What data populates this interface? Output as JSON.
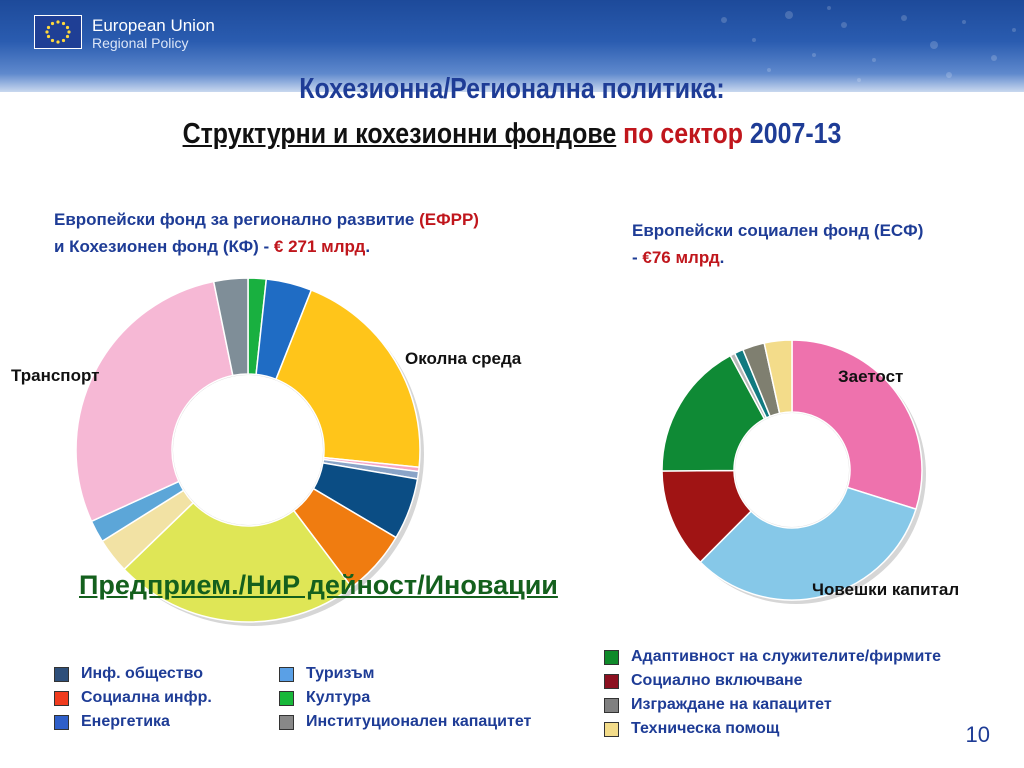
{
  "header": {
    "org_title": "European Union",
    "org_subtitle": "Regional Policy",
    "title_line1": "Кохезионна/Регионална политика:",
    "title_line2_a": "Структурни и кохезионни фондове",
    "title_line2_b": " по сектор ",
    "title_line2_c": "2007-13"
  },
  "left_heading": {
    "line1_a": "Европейски фонд за регионално развитие ",
    "line1_b": "(ЕФРР)",
    "line2_a": "и Кохезионен фонд (КФ) - ",
    "line2_b": "€ 271 млрд",
    "line2_c": "."
  },
  "right_heading": {
    "line1": "Европейски социален фонд (ЕСФ)",
    "line2_a": "- ",
    "line2_b": "€76 млрд",
    "line2_c": "."
  },
  "labels": {
    "transport": "Транспорт",
    "environment": "Околна среда",
    "enterprise": "Предприем./НиР дейност/Иновации",
    "employment": "Заетост",
    "human_capital": "Човешки капитал"
  },
  "legend_left": [
    {
      "label": "Инф. общество",
      "color": "#2e4f7a"
    },
    {
      "label": "Социална инфр.",
      "color": "#f03c1e"
    },
    {
      "label": "Енергетика",
      "color": "#2f5fc9"
    }
  ],
  "legend_mid": [
    {
      "label": "Туризъм",
      "color": "#5aa0e6"
    },
    {
      "label": "Култура",
      "color": "#18b83a"
    },
    {
      "label": "Институционален капацитет",
      "color": "#888888"
    }
  ],
  "legend_right": [
    {
      "label": "Адаптивност на служителите/фирмите",
      "color": "#0f8a2a"
    },
    {
      "label": "Социално включване",
      "color": "#8c1020"
    },
    {
      "label": "Изграждане на капацитет",
      "color": "#808080"
    },
    {
      "label": "Техническа помощ",
      "color": "#f3dc8a"
    }
  ],
  "page_number": "10",
  "chart_data": [
    {
      "type": "pie",
      "title": "Европейски фонд за регионално развитие (ЕФРР) и Кохезионен фонд (КФ) - € 271 млрд.",
      "slices": [
        {
          "label": "Култура",
          "value": 1.7,
          "color": "#19b040"
        },
        {
          "label": "Енергетика",
          "value": 4.3,
          "color": "#1f6cc4"
        },
        {
          "label": "Околна среда",
          "value": 20.6,
          "color": "#ffc51a"
        },
        {
          "label": "Околна среда",
          "value": 0.4,
          "color": "#f7a6c4"
        },
        {
          "label": "Околна среда",
          "value": 0.7,
          "color": "#8aa4c8"
        },
        {
          "label": "Инф. общество",
          "value": 5.8,
          "color": "#0b4d84"
        },
        {
          "label": "Социална инфр.",
          "value": 6.2,
          "color": "#f07c10"
        },
        {
          "label": "Предприем./НиР дейност/Иновации",
          "value": 23.1,
          "color": "#dfe656"
        },
        {
          "label": "Предприем./НиР дейност/Иновации",
          "value": 3.3,
          "color": "#f2e2a4"
        },
        {
          "label": "Туризъм",
          "value": 2.1,
          "color": "#5ca6d8"
        },
        {
          "label": "Транспорт",
          "value": 28.6,
          "color": "#f6b8d5"
        },
        {
          "label": "Институционален капацитет",
          "value": 3.2,
          "color": "#7f8e98"
        }
      ]
    },
    {
      "type": "pie",
      "title": "Европейски социален фонд (ЕСФ) - €76 млрд.",
      "slices": [
        {
          "label": "Заетост",
          "value": 29.6,
          "color": "#ee72ad"
        },
        {
          "label": "Човешки капитал",
          "value": 32.3,
          "color": "#86c8e8"
        },
        {
          "label": "Социално включване",
          "value": 12.3,
          "color": "#a01414"
        },
        {
          "label": "Адаптивност на служителите/фирмите",
          "value": 17.1,
          "color": "#0f8a35"
        },
        {
          "label": "Заетост",
          "value": 0.6,
          "color": "#b9b9b9"
        },
        {
          "label": "Заетост",
          "value": 1.1,
          "color": "#117a80"
        },
        {
          "label": "Изграждане на капацитет",
          "value": 2.7,
          "color": "#7f7f70"
        },
        {
          "label": "Техническа помощ",
          "value": 3.4,
          "color": "#f3dc8a"
        }
      ]
    }
  ]
}
